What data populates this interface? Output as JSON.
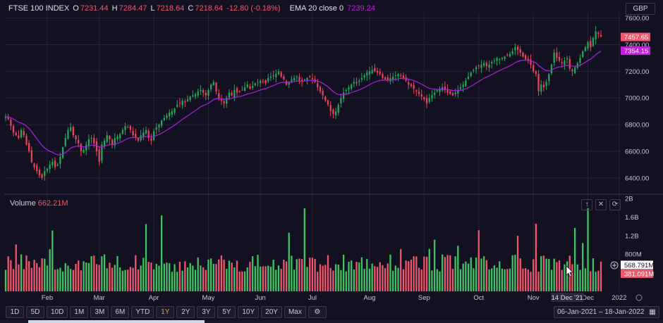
{
  "legend": {
    "title": "FTSE 100 INDEX",
    "o_label": "O",
    "o_val": "7231.44",
    "h_label": "H",
    "h_val": "7284.47",
    "l_label": "L",
    "l_val": "7218.64",
    "c_label": "C",
    "c_val": "7218.64",
    "change": "-12.80 (-0.18%)",
    "ema_label": "EMA 20 close 0",
    "ema_val": "7239.24"
  },
  "currency": "GBP",
  "volume_legend": {
    "label": "Volume",
    "value": "662.21M"
  },
  "pane_buttons": [
    "↑",
    "✕",
    "⟳"
  ],
  "range_buttons": [
    "1D",
    "5D",
    "10D",
    "1M",
    "3M",
    "6M",
    "YTD",
    "1Y",
    "2Y",
    "3Y",
    "5Y",
    "10Y",
    "20Y",
    "Max"
  ],
  "active_range": "1Y",
  "date_range": "06-Jan-2021 – 18-Jan-2022",
  "crosshair_date": "14 Dec '21",
  "colors": {
    "up": "#26a65b",
    "down": "#e8455a",
    "ema": "#a020d0",
    "volume_up": "#3fc464",
    "volume_down": "#f0566c",
    "background": "#131022",
    "grid": "#262338"
  },
  "chart_data": {
    "type": "candlestick",
    "series_name": "FTSE 100 INDEX",
    "price_axis_ticks": [
      "7600.00",
      "7400.00",
      "7200.00",
      "7000.00",
      "6800.00",
      "6600.00",
      "6400.00"
    ],
    "price_ylim": [
      6320,
      7640
    ],
    "volume_axis_ticks": [
      "2B",
      "1.6B",
      "1.2B",
      "800M"
    ],
    "volume_ylim": [
      0,
      2000
    ],
    "x_labels": [
      "Feb",
      "Mar",
      "Apr",
      "May",
      "Jun",
      "Jul",
      "Aug",
      "Sep",
      "Oct",
      "Nov",
      "Dec",
      "2022"
    ],
    "price_labels": [
      {
        "text": "7457.65",
        "value": 7457.65,
        "color": "#f0566c"
      },
      {
        "text": "7354.15",
        "value": 7354.15,
        "color": "#c020d8"
      }
    ],
    "volume_labels": [
      {
        "text": "568.791M",
        "value": 568.791,
        "color": "#131022"
      },
      {
        "text": "381.091M",
        "value": 381.091,
        "color": "#f0566c"
      }
    ],
    "closes": [
      6860,
      6840,
      6790,
      6740,
      6720,
      6700,
      6760,
      6720,
      6650,
      6600,
      6520,
      6480,
      6450,
      6420,
      6400,
      6450,
      6470,
      6500,
      6520,
      6480,
      6500,
      6560,
      6630,
      6700,
      6760,
      6780,
      6720,
      6690,
      6660,
      6600,
      6610,
      6650,
      6690,
      6700,
      6660,
      6600,
      6520,
      6650,
      6680,
      6720,
      6690,
      6650,
      6700,
      6710,
      6730,
      6760,
      6790,
      6780,
      6760,
      6720,
      6700,
      6680,
      6720,
      6740,
      6760,
      6700,
      6680,
      6750,
      6780,
      6800,
      6830,
      6850,
      6870,
      6890,
      6900,
      6920,
      6950,
      6960,
      6980,
      6970,
      6990,
      7010,
      7020,
      7030,
      7050,
      7060,
      7040,
      7020,
      7060,
      7100,
      7120,
      7050,
      7000,
      6980,
      6960,
      7000,
      7040,
      7020,
      7060,
      7040,
      7050,
      7060,
      7080,
      7100,
      7070,
      7090,
      7110,
      7120,
      7130,
      7120,
      7110,
      7150,
      7160,
      7170,
      7180,
      7200,
      7160,
      7140,
      7100,
      7120,
      7140,
      7150,
      7160,
      7130,
      7120,
      7140,
      7150,
      7160,
      7140,
      7120,
      7080,
      7050,
      7020,
      6980,
      6950,
      6900,
      6880,
      6900,
      6950,
      7000,
      7040,
      7060,
      7080,
      7100,
      7120,
      7110,
      7130,
      7150,
      7170,
      7190,
      7200,
      7210,
      7200,
      7190,
      7180,
      7150,
      7140,
      7130,
      7150,
      7160,
      7170,
      7180,
      7170,
      7150,
      7130,
      7100,
      7090,
      7070,
      7050,
      7030,
      7010,
      6990,
      6960,
      7000,
      7020,
      7040,
      7060,
      7070,
      7080,
      7060,
      7040,
      7030,
      7020,
      7040,
      7060,
      7080,
      7100,
      7130,
      7160,
      7190,
      7210,
      7230,
      7240,
      7250,
      7260,
      7240,
      7250,
      7270,
      7280,
      7300,
      7290,
      7300,
      7310,
      7320,
      7330,
      7350,
      7380,
      7360,
      7340,
      7310,
      7290,
      7280,
      7250,
      7200,
      7180,
      7050,
      7100,
      7080,
      7120,
      7180,
      7250,
      7340,
      7300,
      7280,
      7260,
      7280,
      7300,
      7220,
      7200,
      7230,
      7260,
      7300,
      7350,
      7380,
      7420,
      7380,
      7450,
      7500,
      7480,
      7460
    ]
  }
}
